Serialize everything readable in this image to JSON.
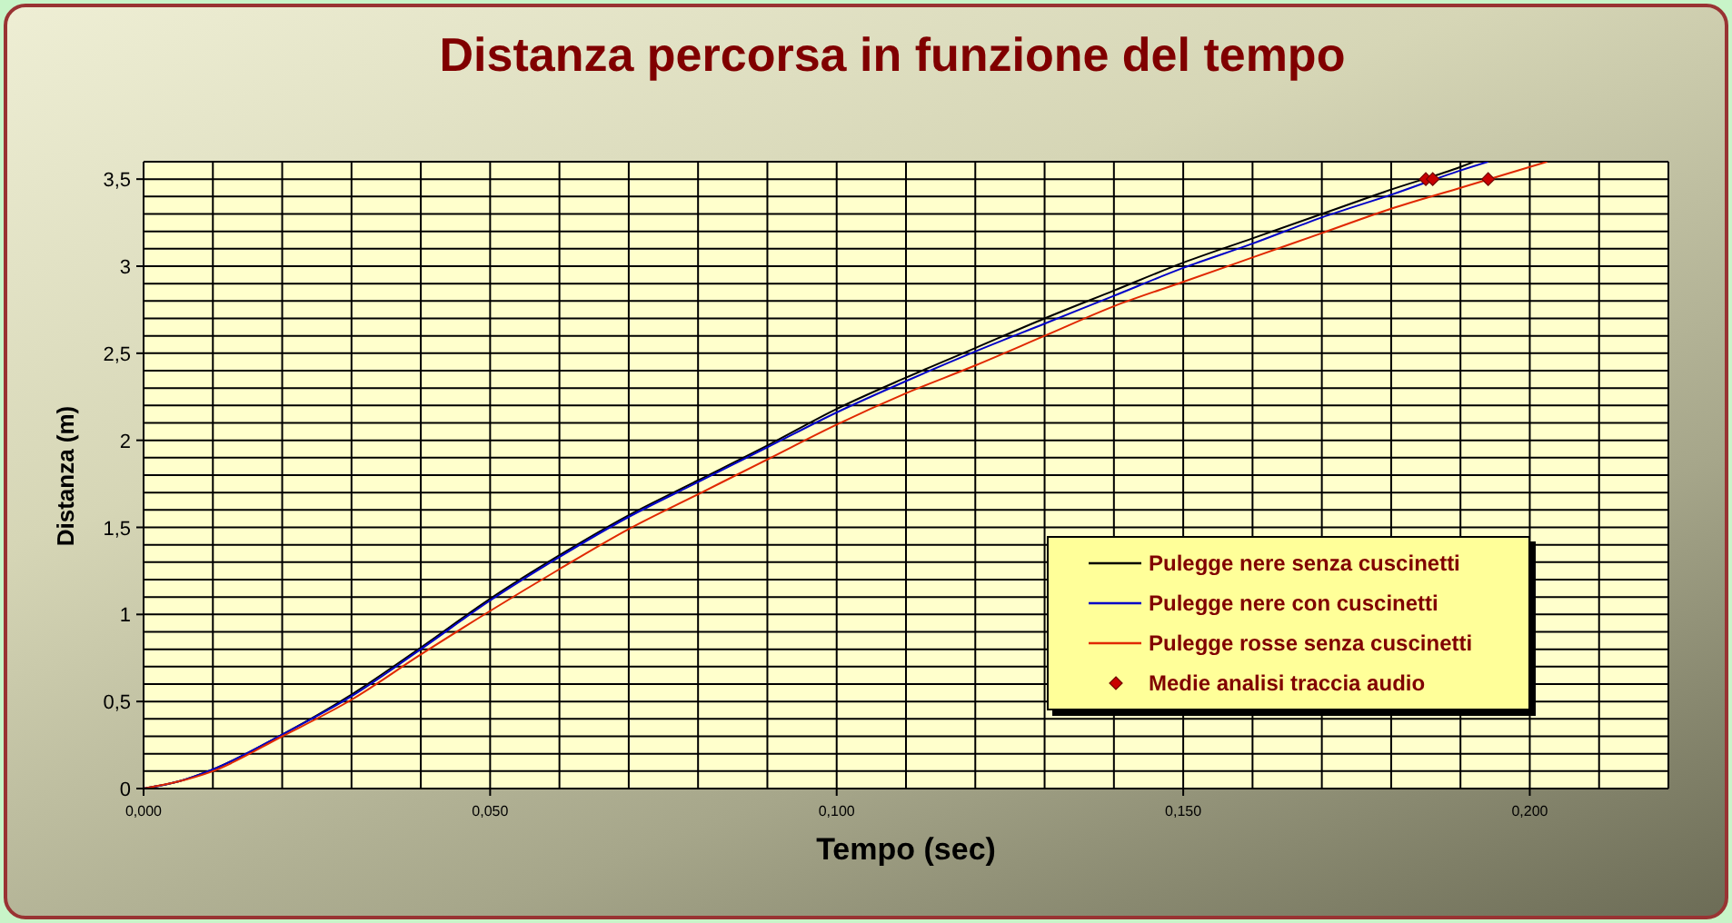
{
  "chart_data": {
    "type": "line",
    "title": "Distanza percorsa in funzione del tempo",
    "xlabel": "Tempo (sec)",
    "ylabel": "Distanza (m)",
    "xlim": [
      0,
      0.22
    ],
    "xticks": [
      {
        "value": 0,
        "label": "0,000"
      },
      {
        "value": 0.01,
        "label": null
      },
      {
        "value": 0.02,
        "label": null
      },
      {
        "value": 0.03,
        "label": null
      },
      {
        "value": 0.04,
        "label": null
      },
      {
        "value": 0.05,
        "label": "0,050"
      },
      {
        "value": 0.06,
        "label": null
      },
      {
        "value": 0.07,
        "label": null
      },
      {
        "value": 0.08,
        "label": null
      },
      {
        "value": 0.09,
        "label": null
      },
      {
        "value": 0.1,
        "label": "0,100"
      },
      {
        "value": 0.11,
        "label": null
      },
      {
        "value": 0.12,
        "label": null
      },
      {
        "value": 0.13,
        "label": null
      },
      {
        "value": 0.14,
        "label": null
      },
      {
        "value": 0.15,
        "label": "0,150"
      },
      {
        "value": 0.16,
        "label": null
      },
      {
        "value": 0.17,
        "label": null
      },
      {
        "value": 0.18,
        "label": null
      },
      {
        "value": 0.19,
        "label": null
      },
      {
        "value": 0.2,
        "label": "0,200"
      },
      {
        "value": 0.21,
        "label": null
      },
      {
        "value": 0.22,
        "label": null
      }
    ],
    "ylim": [
      0,
      3.6
    ],
    "yticks": [
      0,
      {
        "value": 0.1,
        "label": null
      },
      {
        "value": 0.2,
        "label": null
      },
      {
        "value": 0.3,
        "label": null
      },
      {
        "value": 0.4,
        "label": null
      },
      {
        "value": 0.5,
        "label": "0,5"
      },
      {
        "value": 0.6,
        "label": null
      },
      {
        "value": 0.7,
        "label": null
      },
      {
        "value": 0.8,
        "label": null
      },
      {
        "value": 0.9,
        "label": null
      },
      1,
      {
        "value": 1.1,
        "label": null
      },
      {
        "value": 1.2,
        "label": null
      },
      {
        "value": 1.3,
        "label": null
      },
      {
        "value": 1.4,
        "label": null
      },
      {
        "value": 1.5,
        "label": "1,5"
      },
      {
        "value": 1.6,
        "label": null
      },
      {
        "value": 1.7,
        "label": null
      },
      {
        "value": 1.8,
        "label": null
      },
      {
        "value": 1.9,
        "label": null
      },
      2,
      {
        "value": 2.1,
        "label": null
      },
      {
        "value": 2.2,
        "label": null
      },
      {
        "value": 2.3,
        "label": null
      },
      {
        "value": 2.4,
        "label": null
      },
      {
        "value": 2.5,
        "label": "2,5"
      },
      {
        "value": 2.6,
        "label": null
      },
      {
        "value": 2.7,
        "label": null
      },
      {
        "value": 2.8,
        "label": null
      },
      {
        "value": 2.9,
        "label": null
      },
      3,
      {
        "value": 3.1,
        "label": null
      },
      {
        "value": 3.2,
        "label": null
      },
      {
        "value": 3.3,
        "label": null
      },
      {
        "value": 3.4,
        "label": null
      },
      {
        "value": 3.5,
        "label": "3,5"
      },
      {
        "value": 3.6,
        "label": null
      }
    ],
    "grid": true,
    "legend": "bottom right",
    "series": [
      {
        "name": "Pulegge nere senza cuscinetti",
        "color": "#000000",
        "x": [
          0,
          0.005,
          0.01,
          0.02,
          0.03,
          0.04,
          0.05,
          0.06,
          0.07,
          0.08,
          0.09,
          0.1,
          0.11,
          0.12,
          0.13,
          0.14,
          0.15,
          0.16,
          0.17,
          0.18,
          0.19,
          0.192
        ],
        "values": [
          0,
          0.04,
          0.11,
          0.31,
          0.54,
          0.81,
          1.09,
          1.34,
          1.57,
          1.77,
          1.97,
          2.18,
          2.36,
          2.53,
          2.7,
          2.86,
          3.02,
          3.16,
          3.3,
          3.44,
          3.57,
          3.6
        ]
      },
      {
        "name": "Pulegge nere con cuscinetti",
        "color": "#0000c8",
        "x": [
          0,
          0.005,
          0.01,
          0.02,
          0.03,
          0.04,
          0.05,
          0.06,
          0.07,
          0.08,
          0.09,
          0.1,
          0.11,
          0.12,
          0.13,
          0.14,
          0.15,
          0.16,
          0.17,
          0.18,
          0.19,
          0.194
        ],
        "values": [
          0,
          0.04,
          0.11,
          0.31,
          0.53,
          0.8,
          1.08,
          1.33,
          1.56,
          1.76,
          1.96,
          2.16,
          2.34,
          2.51,
          2.67,
          2.83,
          2.99,
          3.13,
          3.28,
          3.41,
          3.55,
          3.6
        ]
      },
      {
        "name": "Pulegge rosse senza cuscinetti",
        "color": "#e02800",
        "x": [
          0,
          0.005,
          0.01,
          0.02,
          0.03,
          0.04,
          0.05,
          0.06,
          0.07,
          0.08,
          0.09,
          0.1,
          0.11,
          0.12,
          0.13,
          0.14,
          0.15,
          0.16,
          0.17,
          0.18,
          0.19,
          0.2,
          0.2025
        ],
        "values": [
          0,
          0.04,
          0.1,
          0.3,
          0.51,
          0.77,
          1.02,
          1.26,
          1.49,
          1.69,
          1.89,
          2.09,
          2.27,
          2.43,
          2.6,
          2.77,
          2.91,
          3.05,
          3.19,
          3.33,
          3.45,
          3.57,
          3.6
        ]
      },
      {
        "name": "Medie analisi traccia audio",
        "type": "scatter",
        "color": "#c80000",
        "marker": "diamond",
        "x": [
          0.185,
          0.186,
          0.194
        ],
        "values": [
          3.5,
          3.5,
          3.5
        ]
      }
    ]
  }
}
